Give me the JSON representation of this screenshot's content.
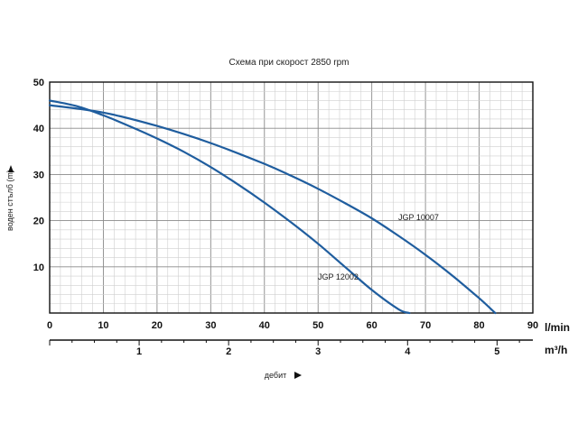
{
  "chart_data": {
    "type": "line",
    "title": "Схема при скорост 2850 rpm",
    "ylabel": "воден стълб (m)",
    "xlabel": "дебит",
    "x_unit": "l/min",
    "x2_unit": "m³/h",
    "xlim": [
      0,
      90
    ],
    "ylim": [
      0,
      50
    ],
    "x_ticks": [
      "0",
      "10",
      "20",
      "30",
      "40",
      "50",
      "60",
      "70",
      "80",
      "90"
    ],
    "y_ticks": [
      "10",
      "20",
      "30",
      "40",
      "50"
    ],
    "x2_ticks": [
      "1",
      "2",
      "3",
      "4",
      "5"
    ],
    "grid": true,
    "series": [
      {
        "name": "JGP 12002",
        "color": "#1f5d9e",
        "x": [
          0,
          5,
          10,
          15,
          20,
          25,
          30,
          35,
          40,
          45,
          50,
          55,
          60,
          65,
          67
        ],
        "y": [
          46,
          44.8,
          42.8,
          40.4,
          37.8,
          34.9,
          31.6,
          27.9,
          23.9,
          19.6,
          15,
          10,
          5,
          0.8,
          0
        ]
      },
      {
        "name": "JGP 10007",
        "color": "#1f5d9e",
        "x": [
          0,
          10,
          20,
          30,
          40,
          45,
          50,
          55,
          60,
          65,
          70,
          75,
          80,
          83
        ],
        "y": [
          45,
          43.4,
          40.5,
          36.8,
          32.3,
          29.7,
          26.9,
          23.8,
          20.5,
          16.7,
          12.6,
          8.1,
          3.2,
          0
        ]
      }
    ]
  }
}
